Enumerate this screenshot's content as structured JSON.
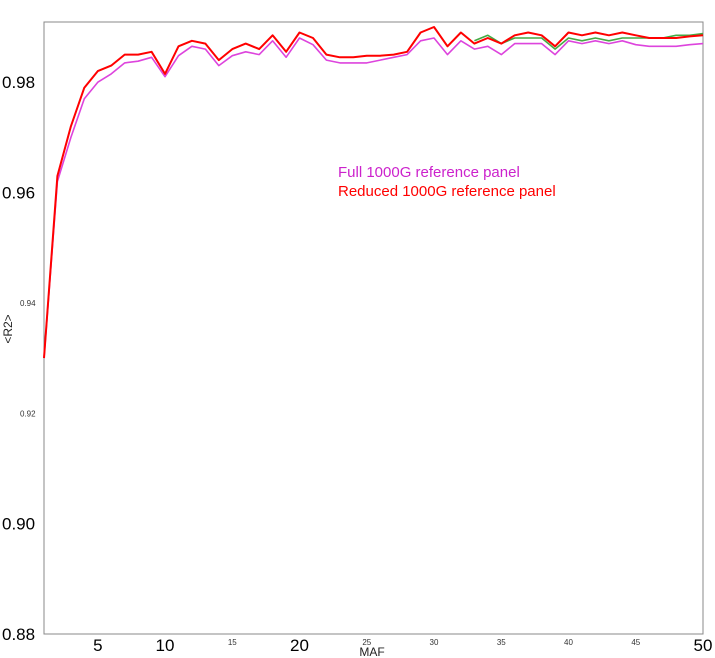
{
  "chart_data": {
    "type": "line",
    "title": "",
    "xlabel": "MAF",
    "ylabel": "<R2>",
    "xlim": [
      1,
      50
    ],
    "ylim": [
      0.88,
      0.99
    ],
    "grid": false,
    "legend_placement": "center-right",
    "x_ticks": [
      {
        "value": 5,
        "label": "5",
        "size": "large"
      },
      {
        "value": 10,
        "label": "10",
        "size": "large"
      },
      {
        "value": 15,
        "label": "15",
        "size": "small"
      },
      {
        "value": 20,
        "label": "20",
        "size": "large"
      },
      {
        "value": 25,
        "label": "25",
        "size": "small"
      },
      {
        "value": 30,
        "label": "30",
        "size": "small"
      },
      {
        "value": 35,
        "label": "35",
        "size": "small"
      },
      {
        "value": 40,
        "label": "40",
        "size": "small"
      },
      {
        "value": 45,
        "label": "45",
        "size": "small"
      },
      {
        "value": 50,
        "label": "50",
        "size": "large"
      }
    ],
    "y_ticks": [
      {
        "value": 0.88,
        "label": "0.88",
        "size": "large"
      },
      {
        "value": 0.9,
        "label": "0.90",
        "size": "large"
      },
      {
        "value": 0.92,
        "label": "0.92",
        "size": "small"
      },
      {
        "value": 0.94,
        "label": "0.94",
        "size": "small"
      },
      {
        "value": 0.96,
        "label": "0.96",
        "size": "large"
      },
      {
        "value": 0.98,
        "label": "0.98",
        "size": "large"
      }
    ],
    "x": [
      1,
      2,
      3,
      4,
      5,
      6,
      7,
      8,
      9,
      10,
      11,
      12,
      13,
      14,
      15,
      16,
      17,
      18,
      19,
      20,
      21,
      22,
      23,
      24,
      25,
      26,
      27,
      28,
      29,
      30,
      31,
      32,
      33,
      34,
      35,
      36,
      37,
      38,
      39,
      40,
      41,
      42,
      43,
      44,
      45,
      46,
      47,
      48,
      49,
      50
    ],
    "series": [
      {
        "name": "Reduced 1000G reference panel",
        "color": "#ff0000",
        "values": [
          0.93,
          0.963,
          0.972,
          0.979,
          0.982,
          0.983,
          0.985,
          0.985,
          0.9855,
          0.9815,
          0.9865,
          0.9875,
          0.987,
          0.984,
          0.986,
          0.987,
          0.986,
          0.9885,
          0.9855,
          0.989,
          0.988,
          0.985,
          0.9845,
          0.9845,
          0.9848,
          0.9848,
          0.985,
          0.9855,
          0.989,
          0.99,
          0.9865,
          0.989,
          0.987,
          0.988,
          0.987,
          0.9885,
          0.989,
          0.9885,
          0.9865,
          0.989,
          0.9885,
          0.989,
          0.9885,
          0.989,
          0.9885,
          0.988,
          0.988,
          0.988,
          0.9883,
          0.9885
        ]
      },
      {
        "name": "Full 1000G reference panel",
        "color": "#dd44dd",
        "values": [
          0.93,
          0.962,
          0.97,
          0.977,
          0.98,
          0.9815,
          0.9835,
          0.9838,
          0.9845,
          0.981,
          0.9848,
          0.9865,
          0.986,
          0.983,
          0.9848,
          0.9855,
          0.985,
          0.9875,
          0.9845,
          0.988,
          0.9868,
          0.984,
          0.9835,
          0.9835,
          0.9835,
          0.984,
          0.9845,
          0.985,
          0.9875,
          0.988,
          0.985,
          0.9875,
          0.986,
          0.9865,
          0.985,
          0.987,
          0.987,
          0.987,
          0.985,
          0.9875,
          0.987,
          0.9875,
          0.987,
          0.9875,
          0.9868,
          0.9865,
          0.9865,
          0.9865,
          0.9868,
          0.987
        ]
      },
      {
        "name": "",
        "color": "#44aa44",
        "values": [
          null,
          null,
          null,
          null,
          null,
          null,
          null,
          null,
          null,
          null,
          null,
          null,
          null,
          null,
          null,
          null,
          null,
          null,
          null,
          null,
          null,
          null,
          null,
          null,
          null,
          null,
          null,
          null,
          null,
          null,
          null,
          null,
          0.9875,
          0.9885,
          0.987,
          0.988,
          0.988,
          0.988,
          0.986,
          0.988,
          0.9875,
          0.988,
          0.9875,
          0.988,
          0.988,
          0.988,
          0.988,
          0.9885,
          0.9885,
          0.9888
        ]
      }
    ],
    "legend": [
      {
        "label": "Full 1000G reference panel",
        "color": "#cc22cc"
      },
      {
        "label": "Reduced 1000G reference panel",
        "color": "#ff0000"
      }
    ]
  }
}
